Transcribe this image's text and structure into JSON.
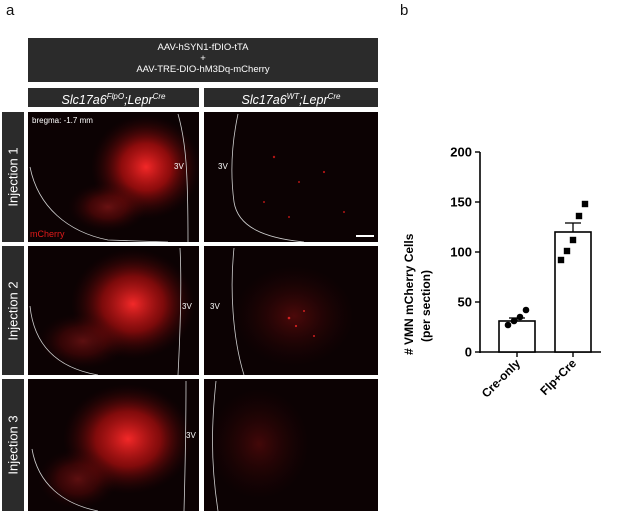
{
  "panel_a": {
    "letter": "a",
    "construct_line1": "AAV-hSYN1-fDIO-tTA",
    "construct_line2": "+",
    "construct_line3": "AAV-TRE-DIO-hM3Dq-mCherry",
    "col1_gene": "Slc17a6",
    "col1_gene_sup": "FlpO",
    "col1_sep": ";Lepr",
    "col1_cre_sup": "Cre",
    "col2_gene": "Slc17a6",
    "col2_gene_sup": "WT",
    "col2_sep": ";Lepr",
    "col2_cre_sup": "Cre",
    "rows": [
      "Injection 1",
      "Injection 2",
      "Injection 3"
    ],
    "bregma": "bregma: -1.7 mm",
    "ventricle": "3V",
    "channel": "mCherry"
  },
  "panel_b": {
    "letter": "b"
  },
  "chart_data": {
    "type": "bar",
    "categories": [
      "Cre-only",
      "Flp+Cre"
    ],
    "values": [
      31,
      120
    ],
    "error": [
      3,
      9
    ],
    "points": [
      [
        27,
        31,
        35,
        42
      ],
      [
        92,
        101,
        112,
        136,
        148
      ]
    ],
    "ylabel_line1": "# VMN mCherry Cells",
    "ylabel_line2": "(per section)",
    "ylim": [
      0,
      200
    ],
    "yticks": [
      "0",
      "50",
      "100",
      "150",
      "200"
    ],
    "ytick_values": [
      0,
      50,
      100,
      150,
      200
    ],
    "bar_fill": "#ffffff",
    "bar_stroke": "#000000"
  }
}
